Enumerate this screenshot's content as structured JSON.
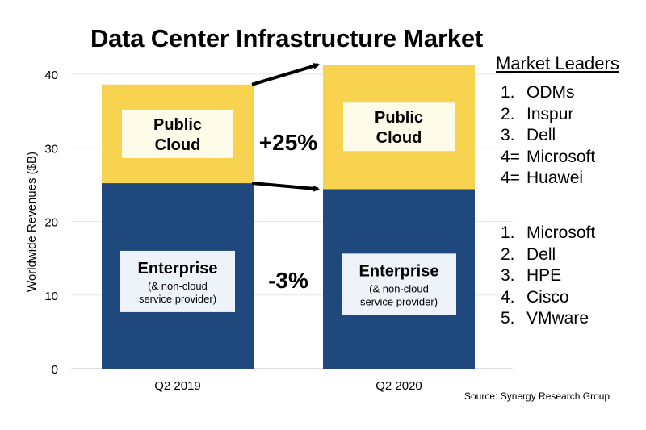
{
  "chart_data": {
    "type": "bar",
    "stacked": true,
    "title": "Data Center Infrastructure Market",
    "ylabel": "Worldwide Revenues ($B)",
    "xlabel": "",
    "categories": [
      "Q2 2019",
      "Q2 2020"
    ],
    "ylim": [
      0,
      42
    ],
    "yticks": [
      0,
      10,
      20,
      30,
      40
    ],
    "grid": true,
    "series": [
      {
        "name": "Enterprise",
        "values": [
          25.2,
          24.4
        ],
        "color": "#1F497D",
        "label_title": "Enterprise",
        "label_sub1": "(& non-cloud",
        "label_sub2": "service provider)"
      },
      {
        "name": "Public Cloud",
        "values": [
          13.4,
          16.9
        ],
        "color": "#F7D34F",
        "label_title1": "Public",
        "label_title2": "Cloud"
      }
    ],
    "annotations": {
      "cloud_growth": "+25%",
      "enterprise_growth": "-3%"
    }
  },
  "legend": {
    "title": "Market Leaders",
    "cloud_leaders": [
      {
        "rank": "1.",
        "name": "ODMs"
      },
      {
        "rank": "2.",
        "name": "Inspur"
      },
      {
        "rank": "3.",
        "name": "Dell"
      },
      {
        "rank": "4=",
        "name": "Microsoft"
      },
      {
        "rank": "4=",
        "name": "Huawei"
      }
    ],
    "enterprise_leaders": [
      {
        "rank": "1.",
        "name": "Microsoft"
      },
      {
        "rank": "2.",
        "name": "Dell"
      },
      {
        "rank": "3.",
        "name": "HPE"
      },
      {
        "rank": "4.",
        "name": "Cisco"
      },
      {
        "rank": "5.",
        "name": "VMware"
      }
    ]
  },
  "source": "Source: Synergy Research Group"
}
